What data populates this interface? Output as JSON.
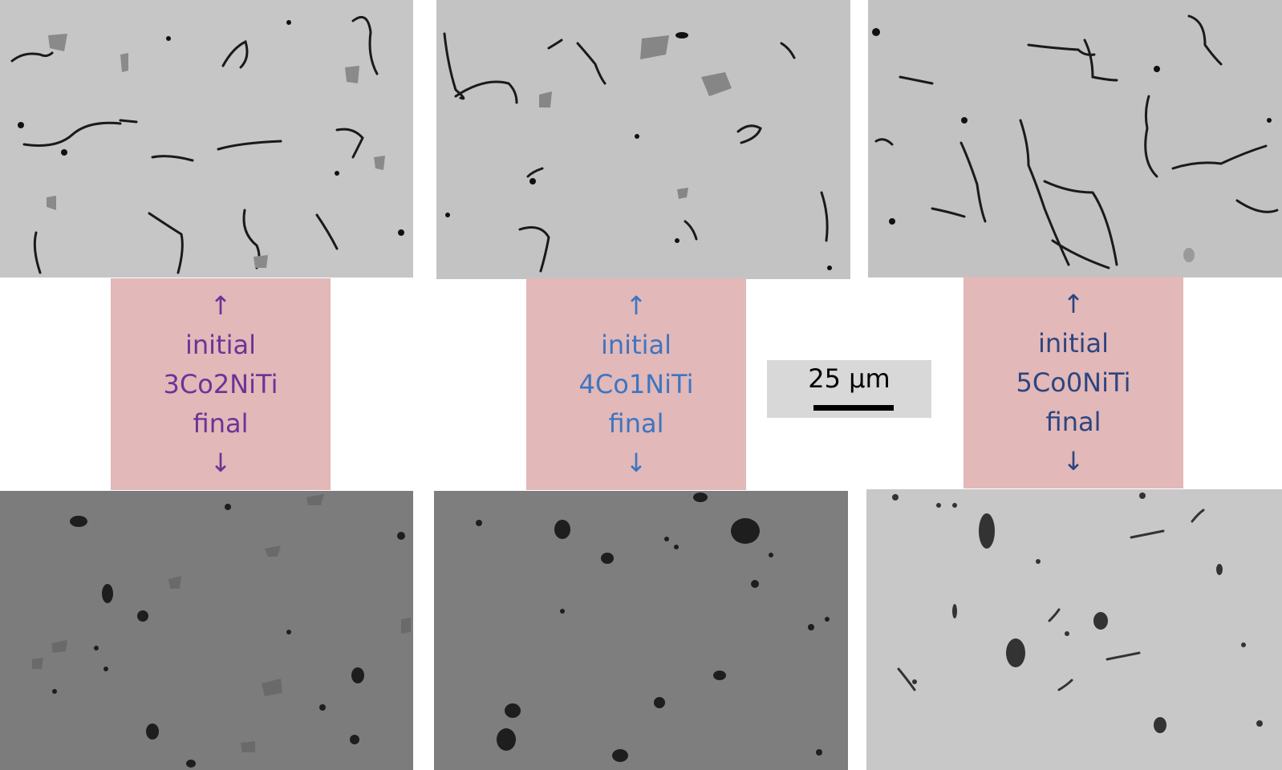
{
  "panels": [
    {
      "labels": {
        "up_arrow": "↑",
        "top": "initial",
        "alloy": "3Co2NiTi",
        "bottom": "final",
        "down_arrow": "↓"
      },
      "label_color": "#6b3399",
      "initial_tone": "#c6c6c6",
      "final_tone": "#7c7c7c"
    },
    {
      "labels": {
        "up_arrow": "↑",
        "top": "initial",
        "alloy": "4Co1NiTi",
        "bottom": "final",
        "down_arrow": "↓"
      },
      "label_color": "#3d75c2",
      "initial_tone": "#c3c3c3",
      "final_tone": "#7e7e7e"
    },
    {
      "labels": {
        "up_arrow": "↑",
        "top": "initial",
        "alloy": "5Co0NiTi",
        "bottom": "final",
        "down_arrow": "↓"
      },
      "label_color": "#2d4580",
      "initial_tone": "#c2c2c2",
      "final_tone": "#c8c8c8"
    }
  ],
  "label_box_color": "#e2b8b8",
  "scale_bar": {
    "label": "25 µm"
  }
}
